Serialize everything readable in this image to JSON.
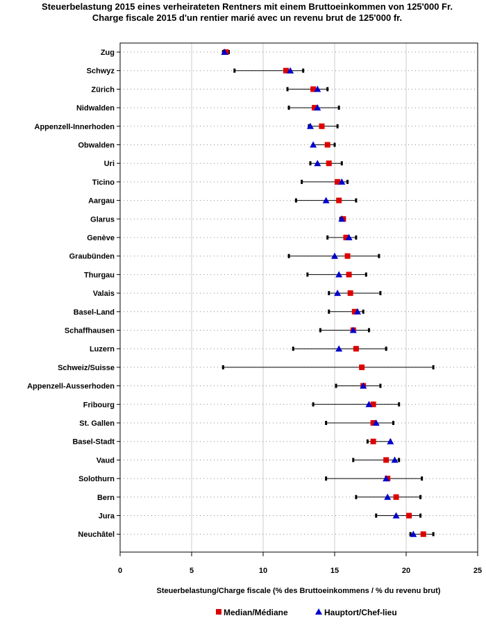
{
  "chart_data": {
    "type": "range-dot",
    "title_line1": "Steuerbelastung 2015 eines verheirateten Rentners mit einem Bruttoeinkommen von 125'000 Fr.",
    "title_line2": "Charge fiscale 2015 d'un rentier marié avec un revenu brut de 125'000 fr.",
    "xlabel": "Steuerbelastung/Charge fiscale (% des Bruttoeinkommens / % du revenu brut)",
    "xlim": [
      0,
      25
    ],
    "xticks": [
      0,
      5,
      10,
      15,
      20,
      25
    ],
    "grid": "vertical at major ticks, dotted horizontal per category",
    "legend": {
      "placement": "bottom-center",
      "items": [
        {
          "name": "Median/Médiane",
          "marker": "square",
          "color": "#dd0000"
        },
        {
          "name": "Hauptort/Chef-lieu",
          "marker": "triangle",
          "color": "#0000cc"
        }
      ]
    },
    "rows": [
      {
        "name": "Zug",
        "min": 7.2,
        "max": 7.6,
        "median": 7.4,
        "capital": 7.3
      },
      {
        "name": "Schwyz",
        "min": 8.0,
        "max": 12.8,
        "median": 11.6,
        "capital": 11.9
      },
      {
        "name": "Zürich",
        "min": 11.7,
        "max": 14.5,
        "median": 13.5,
        "capital": 13.8
      },
      {
        "name": "Nidwalden",
        "min": 11.8,
        "max": 15.3,
        "median": 13.6,
        "capital": 13.8
      },
      {
        "name": "Appenzell-Innerhoden",
        "min": 13.2,
        "max": 15.2,
        "median": 14.1,
        "capital": 13.3
      },
      {
        "name": "Obwalden",
        "min": 13.5,
        "max": 15.0,
        "median": 14.5,
        "capital": 13.5
      },
      {
        "name": "Uri",
        "min": 13.3,
        "max": 15.5,
        "median": 14.6,
        "capital": 13.8
      },
      {
        "name": "Ticino",
        "min": 12.7,
        "max": 15.9,
        "median": 15.2,
        "capital": 15.5
      },
      {
        "name": "Aargau",
        "min": 12.3,
        "max": 16.5,
        "median": 15.3,
        "capital": 14.4
      },
      {
        "name": "Glarus",
        "min": 15.4,
        "max": 15.7,
        "median": 15.6,
        "capital": 15.5
      },
      {
        "name": "Genève",
        "min": 14.5,
        "max": 16.5,
        "median": 15.8,
        "capital": 16.0
      },
      {
        "name": "Graubünden",
        "min": 11.8,
        "max": 18.1,
        "median": 15.9,
        "capital": 15.0
      },
      {
        "name": "Thurgau",
        "min": 13.1,
        "max": 17.2,
        "median": 16.0,
        "capital": 15.3
      },
      {
        "name": "Valais",
        "min": 14.6,
        "max": 18.2,
        "median": 16.1,
        "capital": 15.2
      },
      {
        "name": "Basel-Land",
        "min": 14.6,
        "max": 17.0,
        "median": 16.4,
        "capital": 16.6
      },
      {
        "name": "Schaffhausen",
        "min": 14.0,
        "max": 17.4,
        "median": 16.3,
        "capital": 16.3
      },
      {
        "name": "Luzern",
        "min": 12.1,
        "max": 18.6,
        "median": 16.5,
        "capital": 15.3
      },
      {
        "name": "Schweiz/Suisse",
        "min": 7.2,
        "max": 21.9,
        "median": 16.9,
        "capital": null
      },
      {
        "name": "Appenzell-Ausserhoden",
        "min": 15.1,
        "max": 18.2,
        "median": 17.0,
        "capital": 17.0
      },
      {
        "name": "Fribourg",
        "min": 13.5,
        "max": 19.5,
        "median": 17.7,
        "capital": 17.4
      },
      {
        "name": "St. Gallen",
        "min": 14.4,
        "max": 19.1,
        "median": 17.7,
        "capital": 17.9
      },
      {
        "name": "Basel-Stadt",
        "min": 17.3,
        "max": 18.9,
        "median": 17.7,
        "capital": 18.9
      },
      {
        "name": "Vaud",
        "min": 16.3,
        "max": 19.5,
        "median": 18.6,
        "capital": 19.2
      },
      {
        "name": "Solothurn",
        "min": 14.4,
        "max": 21.1,
        "median": 18.7,
        "capital": 18.6
      },
      {
        "name": "Bern",
        "min": 16.5,
        "max": 21.0,
        "median": 19.3,
        "capital": 18.7
      },
      {
        "name": "Jura",
        "min": 17.9,
        "max": 21.0,
        "median": 20.2,
        "capital": 19.3
      },
      {
        "name": "Neuchâtel",
        "min": 20.3,
        "max": 21.9,
        "median": 21.2,
        "capital": 20.5
      }
    ]
  }
}
